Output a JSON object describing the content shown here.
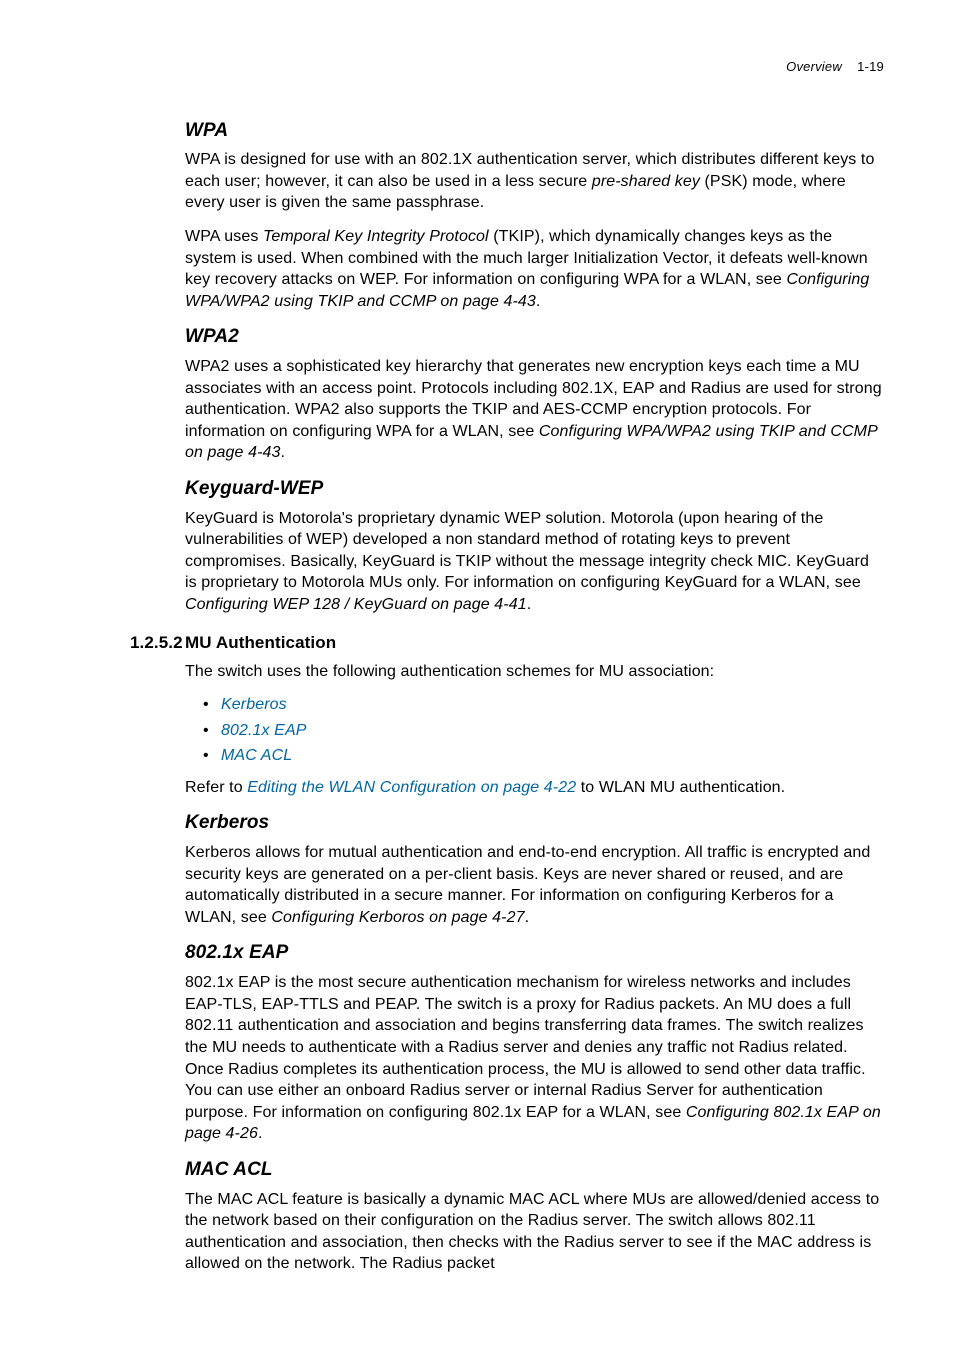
{
  "header": {
    "section": "Overview",
    "page": "1-19"
  },
  "wpa": {
    "title": "WPA",
    "p1a": "WPA is designed for use with an 802.1X authentication server, which distributes different keys to each user; however, it can also be used in a less secure ",
    "p1_em": "pre-shared key",
    "p1b": " (PSK) mode, where every user is given the same passphrase.",
    "p2a": "WPA uses ",
    "p2_em": "Temporal Key Integrity Protocol",
    "p2b": " (TKIP), which dynamically changes keys as the system is used. When combined with the much larger Initialization Vector, it defeats well-known key recovery attacks on WEP. For information on configuring WPA for a WLAN, see ",
    "p2_ref": "Configuring WPA/WPA2 using TKIP and CCMP on page 4-43",
    "p2c": "."
  },
  "wpa2": {
    "title": "WPA2",
    "p1a": "WPA2 uses a sophisticated key hierarchy that generates new encryption keys each time a MU associates with an access point. Protocols including 802.1X, EAP and Radius are used for strong authentication. WPA2 also supports the TKIP and AES-CCMP encryption protocols. For information on configuring WPA for a WLAN, see ",
    "p1_ref": "Configuring WPA/WPA2 using TKIP and CCMP on page 4-43",
    "p1b": "."
  },
  "keyguard": {
    "title": "Keyguard-WEP",
    "p1a": "KeyGuard is Motorola's proprietary dynamic WEP solution. Motorola (upon hearing of the vulnerabilities of WEP) developed a non standard method of rotating keys to prevent compromises. Basically, KeyGuard is TKIP without the message integrity check MIC. KeyGuard is proprietary to Motorola MUs only. For information on configuring KeyGuard for a WLAN, see ",
    "p1_ref": "Configuring WEP 128 / KeyGuard on page 4-41",
    "p1b": "."
  },
  "muauth": {
    "num": "1.2.5.2",
    "title": "MU Authentication",
    "intro": "The switch uses the following authentication schemes for MU association:",
    "bullets": {
      "b0": "Kerberos",
      "b1": "802.1x EAP",
      "b2": "MAC ACL"
    },
    "refer_a": "Refer to ",
    "refer_link": "Editing the WLAN Configuration on page 4-22",
    "refer_b": " to WLAN MU authentication."
  },
  "kerberos": {
    "title": "Kerberos",
    "p1a": "Kerberos allows for mutual authentication and end-to-end encryption. All traffic is encrypted and security keys are generated on a per-client basis. Keys are never shared or reused, and are automatically distributed in a secure manner. For information on configuring Kerberos for a WLAN, see ",
    "p1_ref": "Configuring Kerboros on page 4-27",
    "p1b": "."
  },
  "eap": {
    "title": "802.1x EAP",
    "p1a": "802.1x EAP is the most secure authentication mechanism for wireless networks and includes EAP-TLS, EAP-TTLS and PEAP. The switch is a proxy for Radius packets. An MU does a full 802.11 authentication and association and begins transferring data frames. The switch realizes the MU needs to authenticate with a Radius server and denies any traffic not Radius related. Once Radius completes its authentication process, the MU is allowed to send other data traffic. You can use either an onboard Radius server or internal Radius Server for authentication purpose. For information on configuring 802.1x EAP for a WLAN, see ",
    "p1_ref": "Configuring 802.1x EAP on page 4-26",
    "p1b": "."
  },
  "macacl": {
    "title": "MAC ACL",
    "p1": "The MAC ACL feature is basically a dynamic MAC ACL where MUs are allowed/denied access to the network based on their configuration on the Radius server. The switch allows 802.11 authentication and association, then checks with the Radius server to see if the MAC address is allowed on the network. The Radius packet"
  }
}
